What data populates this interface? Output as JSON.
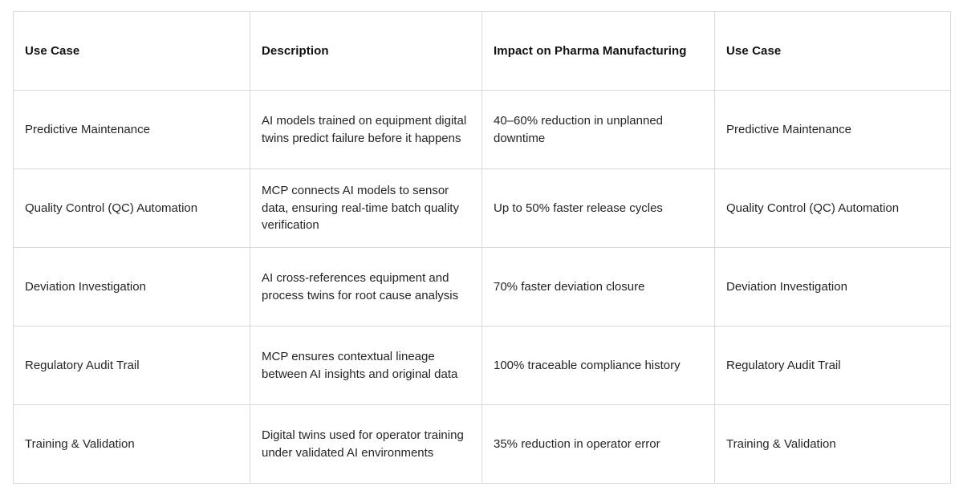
{
  "chart_data": {
    "type": "table",
    "title": "",
    "columns": [
      "Use Case",
      "Description",
      "Impact on Pharma Manufacturing",
      "Use Case"
    ],
    "rows": [
      [
        "Predictive Maintenance",
        "AI models trained on equipment digital twins predict failure before it happens",
        "40–60% reduction in unplanned downtime",
        "Predictive Maintenance"
      ],
      [
        "Quality Control (QC) Automation",
        "MCP connects AI models to sensor data, ensuring real-time batch quality verification",
        "Up to 50% faster release cycles",
        "Quality Control (QC) Automation"
      ],
      [
        "Deviation Investigation",
        "AI cross-references equipment and process twins for root cause analysis",
        "70% faster deviation closure",
        "Deviation Investigation"
      ],
      [
        "Regulatory Audit Trail",
        "MCP ensures contextual lineage between AI insights and original data",
        "100% traceable compliance history",
        "Regulatory Audit Trail"
      ],
      [
        "Training & Validation",
        "Digital twins used for operator training under validated AI environments",
        "35% reduction in operator error",
        "Training & Validation"
      ]
    ]
  },
  "theme": {
    "border_color": "#d9d9d9",
    "header_text_color": "#111111",
    "body_text_color": "#252525",
    "background_color": "#ffffff"
  }
}
